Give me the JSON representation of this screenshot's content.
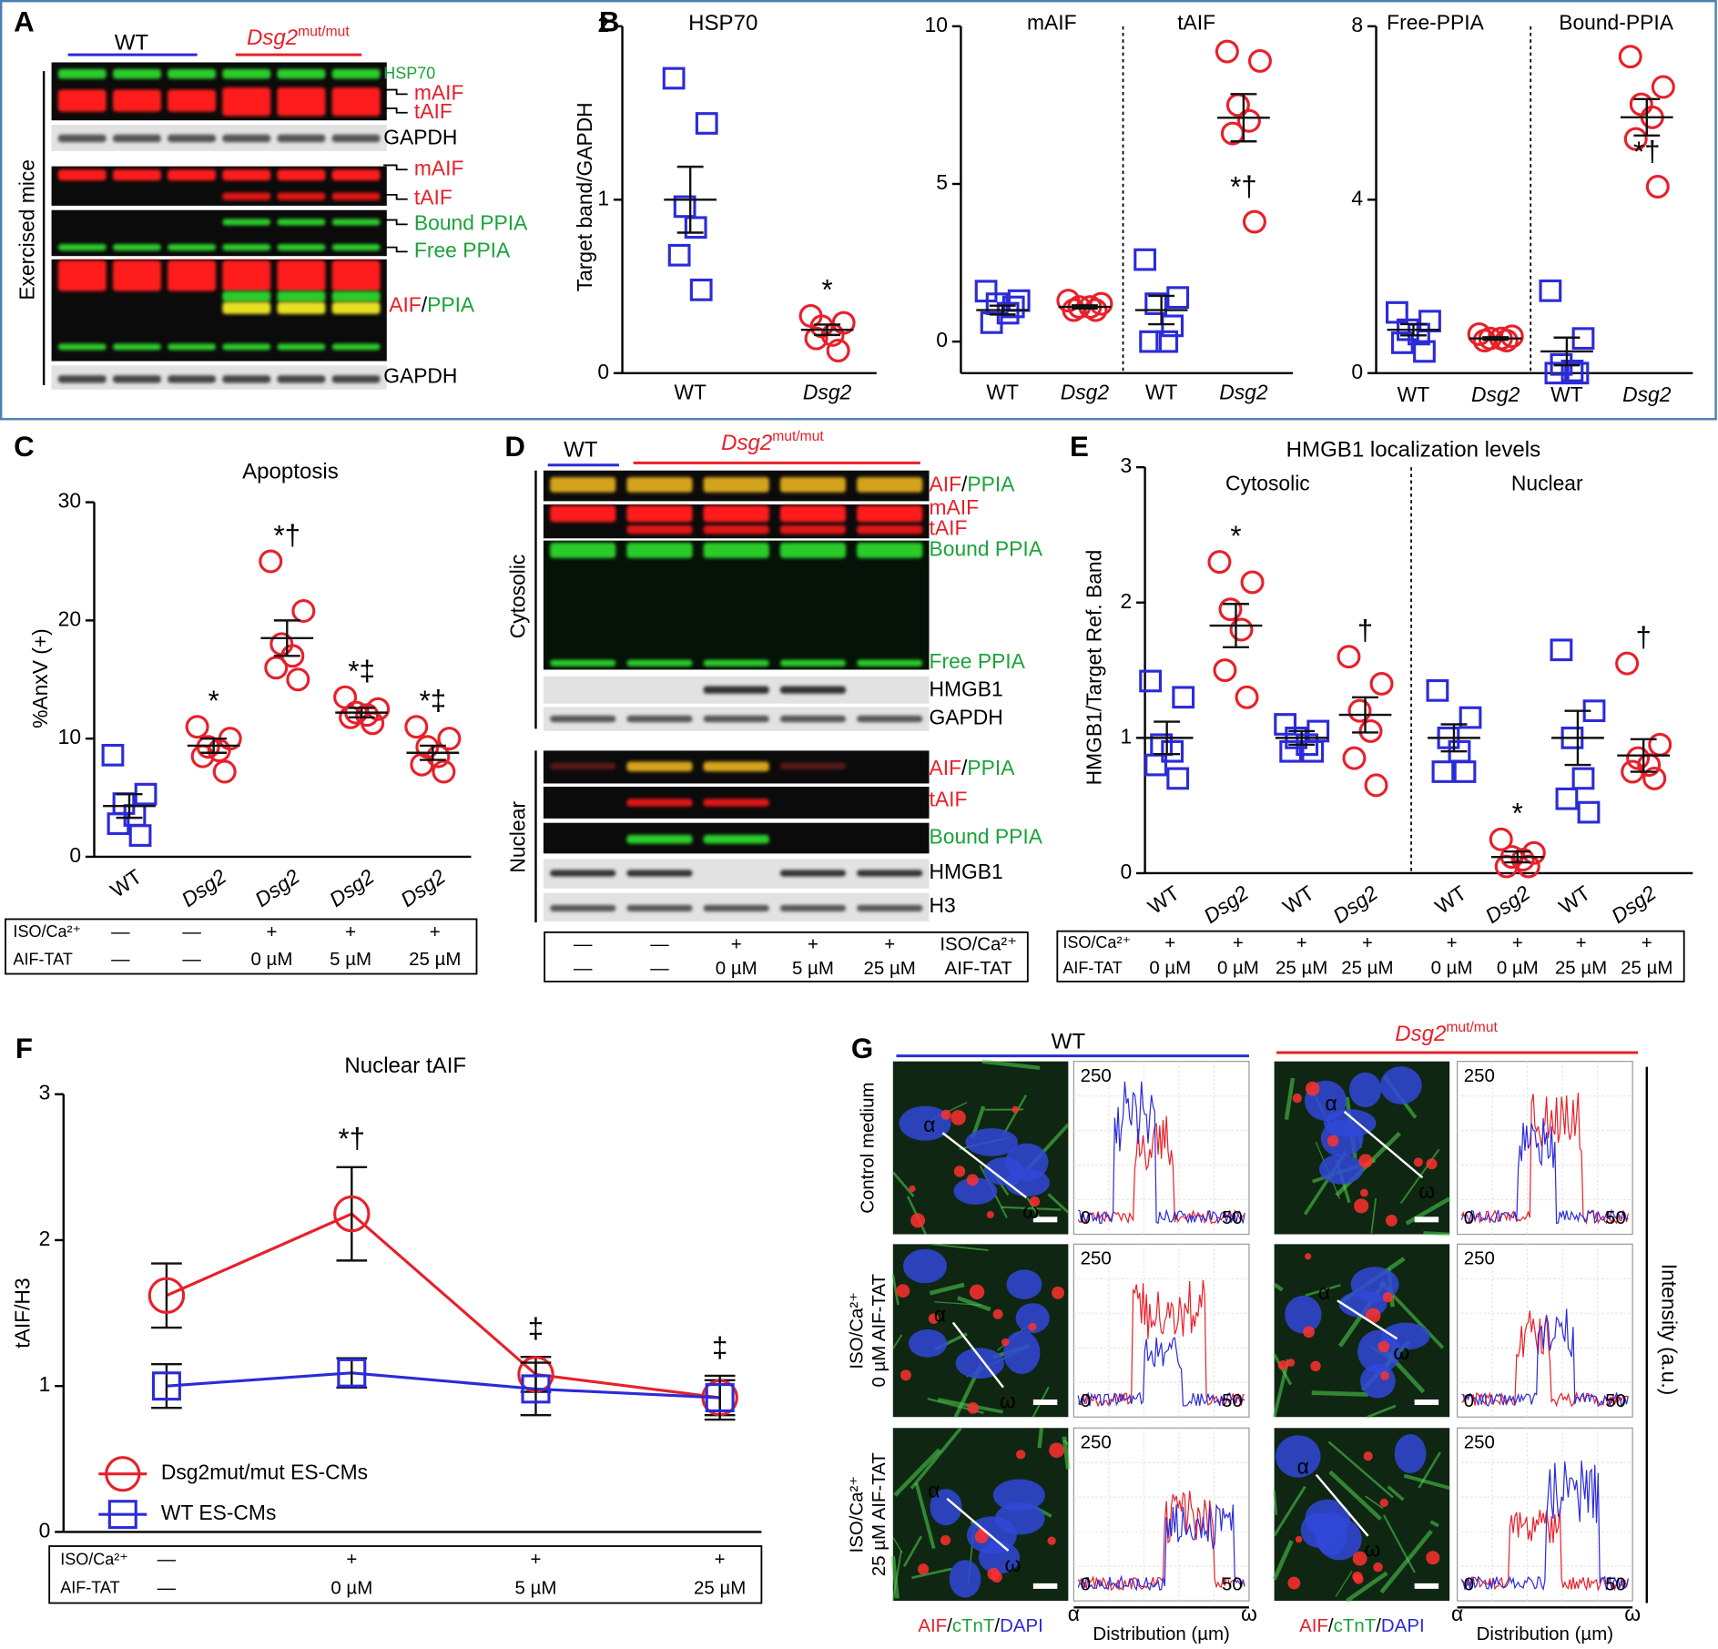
{
  "panel_labels": [
    "A",
    "B",
    "C",
    "D",
    "E",
    "F",
    "G"
  ],
  "blot_a": {
    "header": {
      "wt": "WT",
      "gene": "Dsg2",
      "allele": "mut/mut"
    },
    "side_label": "Exercised mice",
    "labels": [
      {
        "parts": [
          {
            "text": "HSP70",
            "color": "#1aa33a"
          }
        ]
      },
      {
        "parts": [
          {
            "text": "mAIF",
            "color": "#e8202a"
          }
        ]
      },
      {
        "parts": [
          {
            "text": "tAIF",
            "color": "#e8202a"
          }
        ]
      },
      {
        "parts": [
          {
            "text": "GAPDH",
            "color": "#000000"
          }
        ]
      },
      {
        "parts": [
          {
            "text": "mAIF",
            "color": "#e8202a"
          }
        ]
      },
      {
        "parts": [
          {
            "text": "tAIF",
            "color": "#e8202a"
          }
        ]
      },
      {
        "parts": [
          {
            "text": "Bound PPIA",
            "color": "#1aa33a"
          }
        ]
      },
      {
        "parts": [
          {
            "text": "Free PPIA",
            "color": "#1aa33a"
          }
        ]
      },
      {
        "parts": [
          {
            "text": "AIF",
            "color": "#e8202a"
          },
          {
            "text": "/",
            "color": "#000000"
          },
          {
            "text": "PPIA",
            "color": "#1aa33a"
          }
        ]
      },
      {
        "parts": [
          {
            "text": "GAPDH",
            "color": "#000000"
          }
        ]
      }
    ]
  },
  "blot_d": {
    "header": {
      "wt": "WT",
      "gene": "Dsg2",
      "allele": "mut/mut"
    },
    "side_labels": [
      "Cytosolic",
      "Nuclear"
    ],
    "labels": [
      {
        "parts": [
          {
            "text": "AIF",
            "color": "#e8202a"
          },
          {
            "text": "/",
            "color": "#000000"
          },
          {
            "text": "PPIA",
            "color": "#1aa33a"
          }
        ]
      },
      {
        "parts": [
          {
            "text": "mAIF",
            "color": "#e8202a"
          }
        ]
      },
      {
        "parts": [
          {
            "text": "tAIF",
            "color": "#e8202a"
          }
        ]
      },
      {
        "parts": [
          {
            "text": "Bound PPIA",
            "color": "#1aa33a"
          }
        ]
      },
      {
        "parts": [
          {
            "text": "Free PPIA",
            "color": "#1aa33a"
          }
        ]
      },
      {
        "parts": [
          {
            "text": "HMGB1",
            "color": "#000000"
          }
        ]
      },
      {
        "parts": [
          {
            "text": "GAPDH",
            "color": "#000000"
          }
        ]
      },
      {
        "parts": [
          {
            "text": "AIF",
            "color": "#e8202a"
          },
          {
            "text": "/",
            "color": "#000000"
          },
          {
            "text": "PPIA",
            "color": "#1aa33a"
          }
        ]
      },
      {
        "parts": [
          {
            "text": "tAIF",
            "color": "#e8202a"
          }
        ]
      },
      {
        "parts": [
          {
            "text": "Bound PPIA",
            "color": "#1aa33a"
          }
        ]
      },
      {
        "parts": [
          {
            "text": "HMGB1",
            "color": "#000000"
          }
        ]
      },
      {
        "parts": [
          {
            "text": "H3",
            "color": "#000000"
          }
        ]
      }
    ],
    "conditions": [
      {
        "label": "ISO/Ca²⁺",
        "values": [
          "—",
          "—",
          "+",
          "+",
          "+"
        ]
      },
      {
        "label": "AIF-TAT",
        "values": [
          "—",
          "—",
          "0 µM",
          "5 µM",
          "25 µM"
        ]
      }
    ]
  },
  "chart_data": [
    {
      "type": "dotplot",
      "title": "HSP70",
      "y_label": "Target band/GAPDH",
      "ylim": [
        0,
        2
      ],
      "yticks": [
        0,
        1,
        2
      ],
      "groups": [
        {
          "label": "WT",
          "color": "#2b2bd9",
          "marker": "square",
          "values": [
            1.7,
            1.44,
            0.96,
            0.84,
            0.68,
            0.48
          ],
          "mean": 1.0,
          "sem": 0.19
        },
        {
          "label": "Dsg2",
          "color": "#e8202a",
          "marker": "circle",
          "values": [
            0.33,
            0.29,
            0.27,
            0.22,
            0.2,
            0.13
          ],
          "mean": 0.25,
          "sem": 0.03,
          "annotation": "*"
        }
      ]
    },
    {
      "type": "dotplot",
      "subtitles": [
        "mAIF",
        "tAIF"
      ],
      "ylim": [
        -1,
        10
      ],
      "yticks": [
        0,
        5,
        10
      ],
      "groups": [
        {
          "label": "WT",
          "color": "#2b2bd9",
          "marker": "square",
          "values": [
            1.6,
            1.3,
            1.2,
            0.9,
            0.6,
            1.1
          ],
          "mean": 1.0,
          "sem": 0.14
        },
        {
          "label": "Dsg2",
          "color": "#e8202a",
          "marker": "circle",
          "values": [
            1.3,
            1.2,
            1.1,
            1.1,
            1.0,
            1.0
          ],
          "mean": 1.1,
          "sem": 0.05
        },
        {
          "label": "WT",
          "color": "#2b2bd9",
          "marker": "square",
          "values": [
            2.6,
            1.4,
            1.2,
            0.0,
            0.0,
            0.5
          ],
          "mean": 1.0,
          "sem": 0.45
        },
        {
          "label": "Dsg2",
          "color": "#e8202a",
          "marker": "circle",
          "values": [
            9.2,
            8.9,
            7.5,
            7.0,
            6.6,
            3.8
          ],
          "mean": 7.1,
          "sem": 0.75,
          "annotation": "*†"
        }
      ]
    },
    {
      "type": "dotplot",
      "subtitles": [
        "Free-PPIA",
        "Bound-PPIA"
      ],
      "ylim": [
        0,
        8
      ],
      "yticks": [
        0,
        4,
        8
      ],
      "groups": [
        {
          "label": "WT",
          "color": "#2b2bd9",
          "marker": "square",
          "values": [
            1.4,
            1.2,
            1.0,
            0.9,
            0.7,
            0.5
          ],
          "mean": 1.0,
          "sem": 0.13
        },
        {
          "label": "Dsg2",
          "color": "#e8202a",
          "marker": "circle",
          "values": [
            0.9,
            0.85,
            0.8,
            0.8,
            0.75,
            0.75
          ],
          "mean": 0.8,
          "sem": 0.03
        },
        {
          "label": "WT",
          "color": "#2b2bd9",
          "marker": "square",
          "values": [
            1.9,
            0.8,
            0.2,
            0.05,
            0.0,
            0.0
          ],
          "mean": 0.5,
          "sem": 0.32
        },
        {
          "label": "Dsg2",
          "color": "#e8202a",
          "marker": "circle",
          "values": [
            7.3,
            6.6,
            6.2,
            5.9,
            5.4,
            4.3
          ],
          "mean": 5.9,
          "sem": 0.42,
          "annotation": "*†"
        }
      ]
    },
    {
      "type": "dotplot",
      "title": "Apoptosis",
      "y_label": "%AnxV (+)",
      "ylim": [
        0,
        30
      ],
      "yticks": [
        0,
        10,
        20,
        30
      ],
      "groups": [
        {
          "label": "WT",
          "color": "#2b2bd9",
          "marker": "square",
          "values": [
            8.6,
            5.3,
            4.5,
            3.5,
            2.8,
            1.8
          ],
          "mean": 4.3,
          "sem": 1.0
        },
        {
          "label": "Dsg2",
          "color": "#e8202a",
          "marker": "circle",
          "values": [
            11,
            10,
            9.3,
            9,
            8.5,
            7.2
          ],
          "mean": 9.4,
          "sem": 0.6,
          "annotation": "*"
        },
        {
          "label": "Dsg2",
          "color": "#e8202a",
          "marker": "circle",
          "values": [
            25,
            20.8,
            18,
            17,
            16,
            15
          ],
          "mean": 18.5,
          "sem": 1.5,
          "annotation": "*†"
        },
        {
          "label": "Dsg2",
          "color": "#e8202a",
          "marker": "circle",
          "values": [
            13.5,
            12.5,
            12.2,
            12,
            11.8,
            11.3
          ],
          "mean": 12.2,
          "sem": 0.4,
          "annotation": "*‡"
        },
        {
          "label": "Dsg2",
          "color": "#e8202a",
          "marker": "circle",
          "values": [
            11,
            10,
            9.3,
            8.5,
            7.8,
            7.2
          ],
          "mean": 8.8,
          "sem": 0.6,
          "annotation": "*‡"
        }
      ],
      "conditions": [
        {
          "label": "ISO/Ca²⁺",
          "values": [
            "—",
            "—",
            "+",
            "+",
            "+"
          ]
        },
        {
          "label": "AIF-TAT",
          "values": [
            "—",
            "—",
            "0 µM",
            "5 µM",
            "25 µM"
          ]
        }
      ]
    },
    {
      "type": "dotplot",
      "title": "HMGB1 localization levels",
      "subtitles": [
        "Cytosolic",
        "Nuclear"
      ],
      "y_label": "HMGB1/Target Ref. Band",
      "ylim": [
        0,
        3
      ],
      "yticks": [
        0,
        1,
        2,
        3
      ],
      "groups": [
        {
          "label": "WT",
          "color": "#2b2bd9",
          "marker": "square",
          "values": [
            1.42,
            1.3,
            0.95,
            0.9,
            0.8,
            0.7
          ],
          "mean": 1.0,
          "sem": 0.12
        },
        {
          "label": "Dsg2",
          "color": "#e8202a",
          "marker": "circle",
          "values": [
            2.3,
            2.15,
            1.95,
            1.8,
            1.5,
            1.3
          ],
          "mean": 1.83,
          "sem": 0.16,
          "annotation": "*"
        },
        {
          "label": "WT",
          "color": "#2b2bd9",
          "marker": "square",
          "values": [
            1.1,
            1.05,
            1.0,
            0.95,
            0.9,
            0.9
          ],
          "mean": 1.0,
          "sem": 0.05
        },
        {
          "label": "Dsg2",
          "color": "#e8202a",
          "marker": "circle",
          "values": [
            1.6,
            1.4,
            1.2,
            1.05,
            0.85,
            0.65
          ],
          "mean": 1.17,
          "sem": 0.13,
          "annotation": "†"
        },
        {
          "label": "WT",
          "color": "#2b2bd9",
          "marker": "square",
          "values": [
            1.35,
            1.15,
            1.0,
            0.9,
            0.75,
            0.75
          ],
          "mean": 1.0,
          "sem": 0.1
        },
        {
          "label": "Dsg2",
          "color": "#e8202a",
          "marker": "circle",
          "values": [
            0.25,
            0.15,
            0.12,
            0.1,
            0.05,
            0.05
          ],
          "mean": 0.12,
          "sem": 0.04,
          "annotation": "*"
        },
        {
          "label": "WT",
          "color": "#2b2bd9",
          "marker": "square",
          "values": [
            1.65,
            1.2,
            1.0,
            0.7,
            0.55,
            0.45
          ],
          "mean": 1.0,
          "sem": 0.2
        },
        {
          "label": "Dsg2",
          "color": "#e8202a",
          "marker": "circle",
          "values": [
            1.55,
            0.95,
            0.85,
            0.8,
            0.75,
            0.7
          ],
          "mean": 0.87,
          "sem": 0.12,
          "annotation": "†"
        }
      ],
      "conditions": [
        {
          "label": "ISO/Ca²⁺",
          "values": [
            "+",
            "+",
            "+",
            "+",
            "+",
            "+",
            "+",
            "+"
          ]
        },
        {
          "label": "AIF-TAT",
          "values": [
            "0 µM",
            "0 µM",
            "25 µM",
            "25 µM",
            "0 µM",
            "0 µM",
            "25 µM",
            "25 µM"
          ]
        }
      ]
    },
    {
      "type": "line",
      "title": "Nuclear tAIF",
      "y_label": "tAIF/H3",
      "ylim": [
        0,
        3
      ],
      "yticks": [
        0,
        1,
        2,
        3
      ],
      "series": [
        {
          "name": "Dsg2mut/mut ES-CMs",
          "color": "#e8202a",
          "marker": "circle",
          "values": [
            1.62,
            2.18,
            1.08,
            0.92
          ],
          "errors": [
            0.22,
            0.32,
            0.12,
            0.12
          ]
        },
        {
          "name": "WT ES-CMs",
          "color": "#2b2bd9",
          "marker": "square",
          "values": [
            1.0,
            1.09,
            0.98,
            0.92
          ],
          "errors": [
            0.15,
            0.1,
            0.18,
            0.15
          ]
        }
      ],
      "annotations": [
        null,
        "*†",
        "‡",
        "‡"
      ],
      "conditions": [
        {
          "label": "ISO/Ca²⁺",
          "values": [
            "—",
            "+",
            "+",
            "+"
          ]
        },
        {
          "label": "AIF-TAT",
          "values": [
            "—",
            "0 µM",
            "5 µM",
            "25 µM"
          ]
        }
      ]
    }
  ],
  "panel_g": {
    "header": {
      "wt": "WT",
      "gene": "Dsg2",
      "allele": "mut/mut"
    },
    "rows": [
      [
        "Control medium"
      ],
      [
        "ISO/Ca²⁺",
        "0 µM AIF-TAT"
      ],
      [
        "ISO/Ca²⁺",
        "25 µM AIF-TAT"
      ]
    ],
    "stain": [
      {
        "text": "AIF",
        "color": "#e8202a"
      },
      {
        "text": "/",
        "color": "#000000"
      },
      {
        "text": "cTnT",
        "color": "#1aa33a"
      },
      {
        "text": "/",
        "color": "#000000"
      },
      {
        "text": "DAPI",
        "color": "#2b2bd9"
      }
    ],
    "x_label": "Distribution (µm)",
    "y_label": "Intensity (a.u.)",
    "profile_ticks": {
      "top": "250",
      "zero": "0",
      "end": "50"
    },
    "alpha": "α",
    "omega": "ω"
  }
}
